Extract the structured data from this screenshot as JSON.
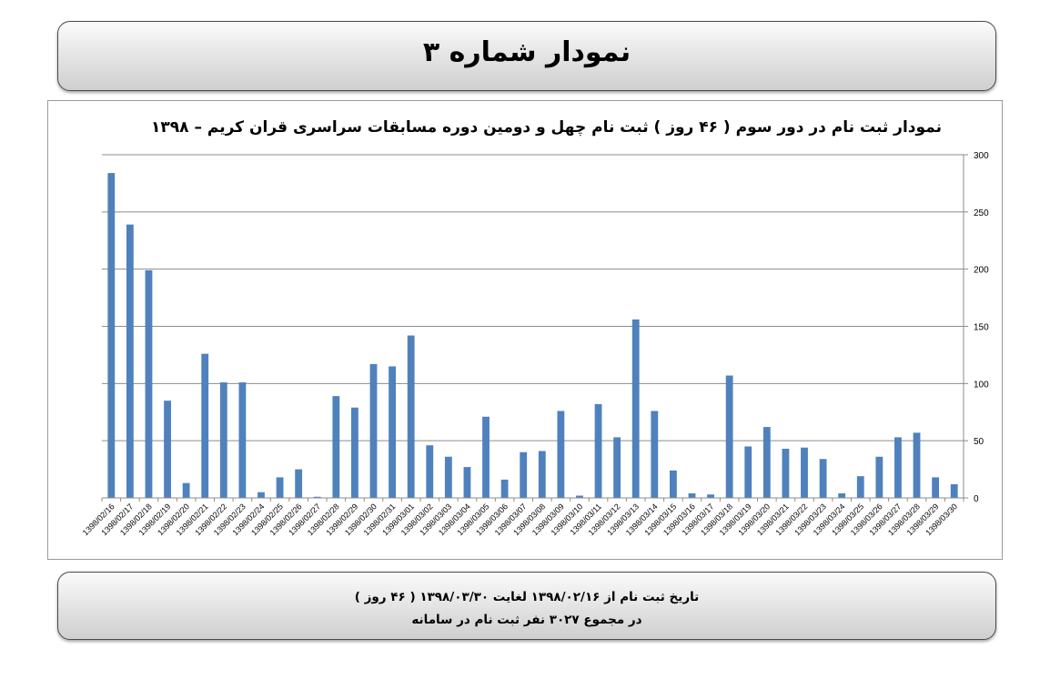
{
  "header": {
    "title": "نمودار شماره ۳"
  },
  "footer": {
    "line1": "تاریخ ثبت نام از ۱۳۹۸/۰۲/۱۶ لغایت ۱۳۹۸/۰۳/۳۰ ( ۴۶ روز )",
    "line2": "در مجموع ۳۰۲۷ نفر ثبت نام در سامانه"
  },
  "colors": {
    "bar": "#4f81bd",
    "grid": "#8c8c8c",
    "axis": "#8c8c8c"
  },
  "chart_data": {
    "type": "bar",
    "title": "نمودار ثبت نام در دور سوم ( ۴۶ روز ) ثبت نام چهل و دومین دوره مسابقات سراسری قران کریم – ۱۳۹۸",
    "xlabel": "",
    "ylabel": "",
    "ylim": [
      0,
      300
    ],
    "yticks": [
      0,
      50,
      100,
      150,
      200,
      250,
      300
    ],
    "y_axis_side": "right",
    "grid": true,
    "legend": "none",
    "categories": [
      "1398/02/16",
      "1398/02/17",
      "1398/02/18",
      "1398/02/19",
      "1398/02/20",
      "1398/02/21",
      "1398/02/22",
      "1398/02/23",
      "1398/02/24",
      "1398/02/25",
      "1398/02/26",
      "1398/02/27",
      "1398/02/28",
      "1398/02/29",
      "1398/02/30",
      "1398/02/31",
      "1398/03/01",
      "1398/03/02",
      "1398/03/03",
      "1398/03/04",
      "1398/03/05",
      "1398/03/06",
      "1398/03/07",
      "1398/03/08",
      "1398/03/09",
      "1398/03/10",
      "1398/03/11",
      "1398/03/12",
      "1398/03/13",
      "1398/03/14",
      "1398/03/15",
      "1398/03/16",
      "1398/03/17",
      "1398/03/18",
      "1398/03/19",
      "1398/03/20",
      "1398/03/21",
      "1398/03/22",
      "1398/03/23",
      "1398/03/24",
      "1398/03/25",
      "1398/03/26",
      "1398/03/27",
      "1398/03/28",
      "1398/03/29",
      "1398/03/30"
    ],
    "values": [
      284,
      239,
      199,
      85,
      13,
      126,
      101,
      101,
      5,
      18,
      25,
      1,
      89,
      79,
      117,
      115,
      142,
      46,
      36,
      27,
      71,
      16,
      40,
      41,
      76,
      2,
      82,
      53,
      156,
      76,
      24,
      4,
      3,
      107,
      45,
      62,
      43,
      44,
      34,
      4,
      19,
      36,
      53,
      57,
      18,
      12
    ]
  }
}
